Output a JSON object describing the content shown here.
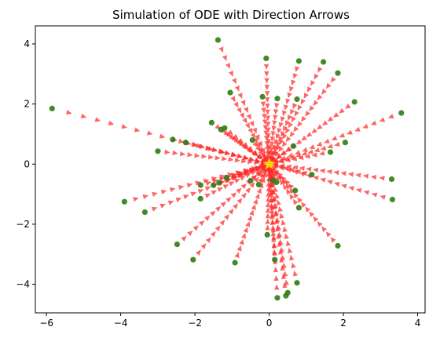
{
  "chart_data": {
    "type": "scatter",
    "title": "Simulation of ODE with Direction Arrows",
    "xlabel": "",
    "ylabel": "",
    "xlim": [
      -6.3,
      4.2
    ],
    "ylim": [
      -4.95,
      4.6
    ],
    "xticks": [
      -6,
      -4,
      -2,
      0,
      2,
      4
    ],
    "xtick_labels": [
      "−6",
      "−4",
      "−2",
      "0",
      "2",
      "4"
    ],
    "yticks": [
      -4,
      -2,
      0,
      2,
      4
    ],
    "ytick_labels": [
      "−4",
      "−2",
      "0",
      "2",
      "4"
    ],
    "grid": false,
    "legend": "none",
    "equilibrium": {
      "x": 0,
      "y": 0,
      "marker": "star",
      "color": "#ffd700"
    },
    "start_points_color": "#2e7d12",
    "arrow_color": "#ff2a2a",
    "arrows_per_trajectory": 16,
    "series": [
      {
        "role": "initial-conditions",
        "marker": "circle",
        "points": [
          [
            -1.38,
            4.13
          ],
          [
            -0.08,
            3.52
          ],
          [
            0.8,
            3.43
          ],
          [
            1.46,
            3.4
          ],
          [
            1.85,
            3.03
          ],
          [
            -0.18,
            2.24
          ],
          [
            0.22,
            2.18
          ],
          [
            0.75,
            2.16
          ],
          [
            -1.05,
            2.38
          ],
          [
            2.3,
            2.07
          ],
          [
            -5.85,
            1.85
          ],
          [
            3.56,
            1.7
          ],
          [
            -1.55,
            1.38
          ],
          [
            -1.2,
            1.2
          ],
          [
            -1.3,
            1.15
          ],
          [
            -0.45,
            0.8
          ],
          [
            0.65,
            0.6
          ],
          [
            2.05,
            0.72
          ],
          [
            -2.6,
            0.82
          ],
          [
            -2.25,
            0.72
          ],
          [
            -3.0,
            0.43
          ],
          [
            1.65,
            0.4
          ],
          [
            -1.85,
            -0.7
          ],
          [
            -1.5,
            -0.7
          ],
          [
            -1.35,
            -0.62
          ],
          [
            -1.15,
            -0.45
          ],
          [
            -0.5,
            -0.55
          ],
          [
            -0.28,
            -0.68
          ],
          [
            0.1,
            -0.55
          ],
          [
            0.2,
            -0.6
          ],
          [
            1.15,
            -0.35
          ],
          [
            3.3,
            -0.5
          ],
          [
            0.7,
            -0.88
          ],
          [
            -1.85,
            -1.15
          ],
          [
            0.8,
            -1.45
          ],
          [
            -3.9,
            -1.25
          ],
          [
            3.32,
            -1.18
          ],
          [
            -3.35,
            -1.6
          ],
          [
            -0.05,
            -2.35
          ],
          [
            1.85,
            -2.72
          ],
          [
            -2.48,
            -2.67
          ],
          [
            0.15,
            -3.18
          ],
          [
            -2.05,
            -3.18
          ],
          [
            -0.92,
            -3.28
          ],
          [
            0.75,
            -3.95
          ],
          [
            0.5,
            -4.28
          ],
          [
            0.45,
            -4.38
          ],
          [
            0.22,
            -4.45
          ]
        ]
      }
    ]
  }
}
